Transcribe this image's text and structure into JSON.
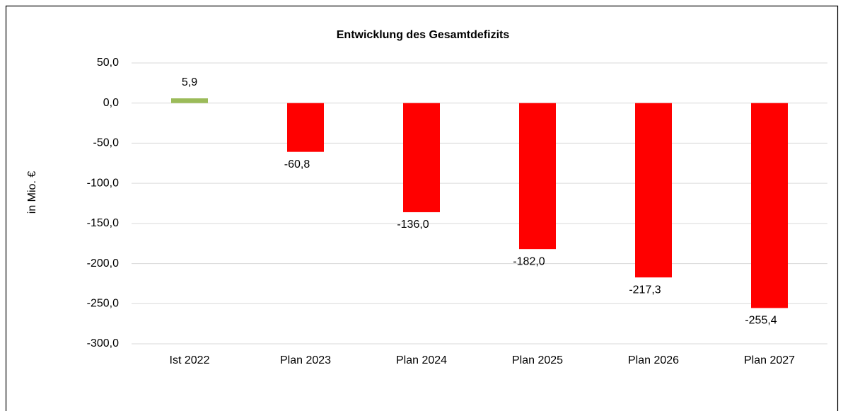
{
  "chart_data": {
    "type": "bar",
    "title": "Entwicklung des Gesamtdefizits",
    "y_label": "in Mio. €",
    "categories": [
      "Ist 2022",
      "Plan 2023",
      "Plan 2024",
      "Plan 2025",
      "Plan 2026",
      "Plan 2027"
    ],
    "values": [
      5.9,
      -60.8,
      -136.0,
      -182.0,
      -217.3,
      -255.4
    ],
    "value_labels": [
      "5,9",
      "-60,8",
      "-136,0",
      "-182,0",
      "-217,3",
      "-255,4"
    ],
    "colors": [
      "#9bbb59",
      "#ff0000",
      "#ff0000",
      "#ff0000",
      "#ff0000",
      "#ff0000"
    ],
    "ylim": [
      -300,
      50
    ],
    "yticks": [
      {
        "value": 50,
        "label": "50,0"
      },
      {
        "value": 0,
        "label": "0,0"
      },
      {
        "value": -50,
        "label": "-50,0"
      },
      {
        "value": -100,
        "label": "-100,0"
      },
      {
        "value": -150,
        "label": "-150,0"
      },
      {
        "value": -200,
        "label": "-200,0"
      },
      {
        "value": -250,
        "label": "-250,0"
      },
      {
        "value": -300,
        "label": "-300,0"
      }
    ],
    "grid": true
  }
}
